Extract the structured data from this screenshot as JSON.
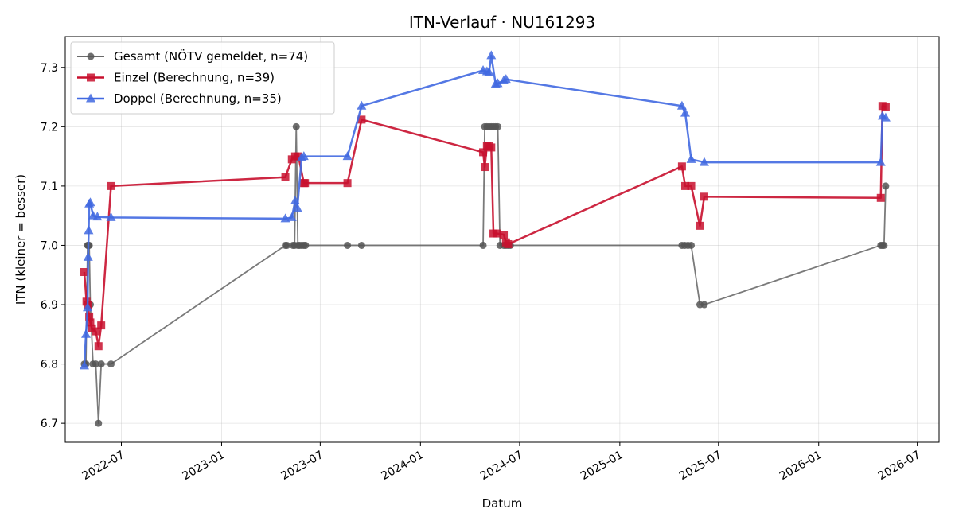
{
  "chart_data": {
    "type": "line",
    "title": "ITN-Verlauf · NU161293",
    "xlabel": "Datum",
    "ylabel": "ITN  (kleiner = besser)",
    "x_is_date": true,
    "xlim": [
      "2022-03-20",
      "2026-08-10"
    ],
    "ylim": [
      6.668,
      7.352
    ],
    "x_ticks": [
      "2022-07-01",
      "2023-01-01",
      "2023-07-01",
      "2024-01-01",
      "2024-07-01",
      "2025-01-01",
      "2025-07-01",
      "2026-01-01",
      "2026-07-01"
    ],
    "x_tick_labels": [
      "2022-07",
      "2023-01",
      "2023-07",
      "2024-01",
      "2024-07",
      "2025-01",
      "2025-07",
      "2026-01",
      "2026-07"
    ],
    "y_ticks": [
      6.7,
      6.8,
      6.9,
      7.0,
      7.1,
      7.2,
      7.3
    ],
    "y_tick_labels": [
      "6.7",
      "6.8",
      "6.9",
      "7.0",
      "7.1",
      "7.2",
      "7.3"
    ],
    "grid": true,
    "legend_position": "top-left",
    "series": [
      {
        "name": "Gesamt (NÖTV gemeldet, n=74)",
        "color": "#555555",
        "marker": "circle",
        "x": [
          "2022-04-24",
          "2022-04-27",
          "2022-04-30",
          "2022-05-01",
          "2022-05-02",
          "2022-05-03",
          "2022-05-05",
          "2022-05-10",
          "2022-05-15",
          "2022-05-20",
          "2022-05-25",
          "2022-06-12",
          "2023-04-28",
          "2023-05-01",
          "2023-05-12",
          "2023-05-15",
          "2023-05-18",
          "2023-05-21",
          "2023-05-24",
          "2023-05-28",
          "2023-06-01",
          "2023-06-04",
          "2023-08-20",
          "2023-09-15",
          "2024-04-25",
          "2024-04-28",
          "2024-05-02",
          "2024-05-06",
          "2024-05-10",
          "2024-05-14",
          "2024-05-18",
          "2024-05-22",
          "2024-05-26",
          "2024-06-02",
          "2024-06-06",
          "2024-06-10",
          "2024-06-14",
          "2025-04-25",
          "2025-04-30",
          "2025-05-06",
          "2025-05-12",
          "2025-05-28",
          "2025-06-05",
          "2026-04-25",
          "2026-04-28",
          "2026-05-01",
          "2026-05-04"
        ],
        "values": [
          6.8,
          6.8,
          7.0,
          7.0,
          7.0,
          7.0,
          6.9,
          6.8,
          6.8,
          6.7,
          6.8,
          6.8,
          7.0,
          7.0,
          7.0,
          7.0,
          7.2,
          7.0,
          7.0,
          7.0,
          7.0,
          7.0,
          7.0,
          7.0,
          7.0,
          7.2,
          7.2,
          7.2,
          7.2,
          7.2,
          7.2,
          7.2,
          7.0,
          7.0,
          7.0,
          7.0,
          7.0,
          7.0,
          7.0,
          7.0,
          7.0,
          6.9,
          6.9,
          7.0,
          7.0,
          7.0,
          7.1
        ]
      },
      {
        "name": "Einzel (Berechnung, n=39)",
        "color": "#c8102e",
        "marker": "square",
        "x": [
          "2022-04-24",
          "2022-04-28",
          "2022-05-01",
          "2022-05-03",
          "2022-05-05",
          "2022-05-08",
          "2022-05-15",
          "2022-05-20",
          "2022-05-25",
          "2022-06-12",
          "2023-04-28",
          "2023-05-10",
          "2023-05-16",
          "2023-05-22",
          "2023-06-01",
          "2023-06-03",
          "2023-08-20",
          "2023-09-15",
          "2024-04-25",
          "2024-04-28",
          "2024-05-02",
          "2024-05-06",
          "2024-05-10",
          "2024-05-14",
          "2024-05-20",
          "2024-06-02",
          "2024-06-06",
          "2024-06-10",
          "2025-04-25",
          "2025-05-01",
          "2025-05-12",
          "2025-05-28",
          "2025-06-05",
          "2026-04-25",
          "2026-04-28",
          "2026-05-04"
        ],
        "values": [
          6.955,
          6.905,
          6.9,
          6.88,
          6.87,
          6.86,
          6.855,
          6.83,
          6.865,
          7.1,
          7.115,
          7.145,
          7.15,
          7.15,
          7.105,
          7.105,
          7.105,
          7.212,
          7.157,
          7.132,
          7.168,
          7.168,
          7.165,
          7.02,
          7.02,
          7.018,
          7.005,
          7.002,
          7.133,
          7.1,
          7.1,
          7.033,
          7.082,
          7.08,
          7.235,
          7.233
        ]
      },
      {
        "name": "Doppel (Berechnung, n=35)",
        "color": "#4169e1",
        "marker": "triangle",
        "x": [
          "2022-04-24",
          "2022-04-27",
          "2022-04-30",
          "2022-05-01",
          "2022-05-02",
          "2022-05-03",
          "2022-05-05",
          "2022-05-10",
          "2022-05-18",
          "2022-06-12",
          "2023-04-28",
          "2023-05-10",
          "2023-05-16",
          "2023-05-20",
          "2023-05-28",
          "2023-06-01",
          "2023-08-20",
          "2023-09-15",
          "2024-04-25",
          "2024-05-02",
          "2024-05-06",
          "2024-05-10",
          "2024-05-18",
          "2024-05-22",
          "2024-06-02",
          "2024-06-06",
          "2025-04-25",
          "2025-05-01",
          "2025-05-12",
          "2025-06-05",
          "2026-04-25",
          "2026-04-28",
          "2026-05-04"
        ],
        "values": [
          6.797,
          6.85,
          6.895,
          6.98,
          7.025,
          7.07,
          7.072,
          7.05,
          7.048,
          7.047,
          7.045,
          7.047,
          7.075,
          7.063,
          7.148,
          7.15,
          7.15,
          7.235,
          7.295,
          7.293,
          7.292,
          7.32,
          7.272,
          7.273,
          7.278,
          7.28,
          7.235,
          7.223,
          7.145,
          7.14,
          7.14,
          7.218,
          7.215
        ]
      }
    ]
  }
}
